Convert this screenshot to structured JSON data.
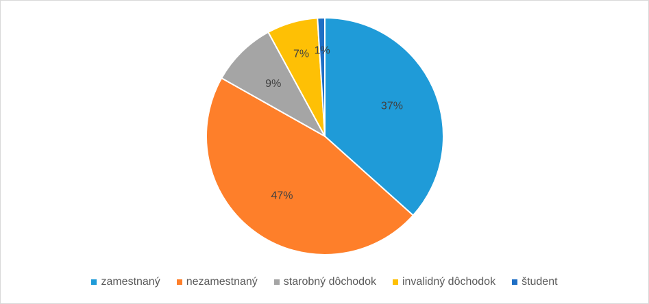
{
  "chart_data": {
    "type": "pie",
    "title": "",
    "categories": [
      "zamestnaný",
      "nezamestnaný",
      "starobný dôchodok",
      "invalidný dôchodok",
      "študent"
    ],
    "values": [
      37,
      47,
      9,
      7,
      1
    ],
    "labels": [
      "37%",
      "47%",
      "9%",
      "7%",
      "1%"
    ],
    "colors": [
      "#1f9bd8",
      "#fe7f2a",
      "#a5a5a5",
      "#fec005",
      "#1f6fc5"
    ],
    "legend": "bottom",
    "start_angle": "12 o'clock, clockwise"
  }
}
